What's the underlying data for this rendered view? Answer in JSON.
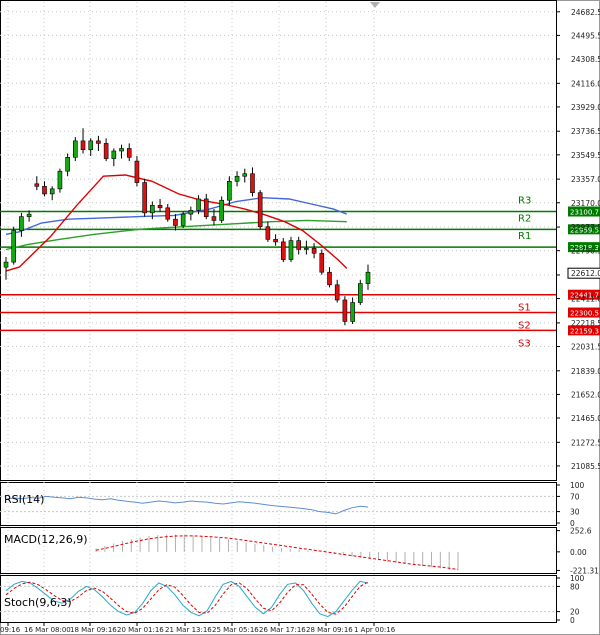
{
  "chart_data": {
    "type": "candlestick",
    "title": "",
    "ylim": [
      20990,
      24760
    ],
    "y_ticks": [
      "24682.5",
      "24495.5",
      "24308.5",
      "24116.0",
      "23929.0",
      "23736.5",
      "23549.5",
      "23357.0",
      "23170.0",
      "22977.5",
      "22790.5",
      "22598.0",
      "22411.0",
      "22218.5",
      "22031.5",
      "21839.0",
      "21652.0",
      "21465.0",
      "21272.5",
      "21085.5"
    ],
    "x_ticks": [
      "09:16",
      "16 Mar 08:00",
      "18 Mar 09:16",
      "20 Mar 01:16",
      "21 Mar 13:16",
      "25 Mar 05:16",
      "26 Mar 17:16",
      "28 Mar 09:16",
      "1 Apr 00:16"
    ],
    "current_price": "22612.0",
    "levels": [
      {
        "name": "R3",
        "value": 23100.7,
        "label": "23100.7",
        "color": "#007a00"
      },
      {
        "name": "R2",
        "value": 22959.5,
        "label": "22959.5",
        "color": "#007a00"
      },
      {
        "name": "R1",
        "value": 22818.3,
        "label": "22818.3",
        "color": "#007a00"
      },
      {
        "name": "S1",
        "value": 22441.7,
        "label": "22441.7",
        "color": "#e00000"
      },
      {
        "name": "S2",
        "value": 22300.5,
        "label": "22300.5",
        "color": "#e00000"
      },
      {
        "name": "S3",
        "value": 22159.3,
        "label": "22159.3",
        "color": "#e00000"
      }
    ],
    "candles": [
      {
        "o": 22660,
        "h": 22740,
        "l": 22560,
        "c": 22700
      },
      {
        "o": 22700,
        "h": 22980,
        "l": 22680,
        "c": 22950
      },
      {
        "o": 22950,
        "h": 23090,
        "l": 22900,
        "c": 23060
      },
      {
        "o": 23060,
        "h": 23110,
        "l": 23020,
        "c": 23080
      },
      {
        "o": 23320,
        "h": 23380,
        "l": 23270,
        "c": 23300
      },
      {
        "o": 23300,
        "h": 23340,
        "l": 23220,
        "c": 23240
      },
      {
        "o": 23240,
        "h": 23300,
        "l": 23190,
        "c": 23280
      },
      {
        "o": 23280,
        "h": 23440,
        "l": 23250,
        "c": 23420
      },
      {
        "o": 23420,
        "h": 23560,
        "l": 23380,
        "c": 23530
      },
      {
        "o": 23530,
        "h": 23690,
        "l": 23500,
        "c": 23660
      },
      {
        "o": 23660,
        "h": 23760,
        "l": 23560,
        "c": 23590
      },
      {
        "o": 23590,
        "h": 23680,
        "l": 23540,
        "c": 23660
      },
      {
        "o": 23660,
        "h": 23700,
        "l": 23580,
        "c": 23640
      },
      {
        "o": 23640,
        "h": 23680,
        "l": 23500,
        "c": 23520
      },
      {
        "o": 23520,
        "h": 23600,
        "l": 23460,
        "c": 23580
      },
      {
        "o": 23580,
        "h": 23630,
        "l": 23520,
        "c": 23600
      },
      {
        "o": 23600,
        "h": 23640,
        "l": 23500,
        "c": 23530
      },
      {
        "o": 23500,
        "h": 23540,
        "l": 23300,
        "c": 23330
      },
      {
        "o": 23330,
        "h": 23360,
        "l": 23060,
        "c": 23090
      },
      {
        "o": 23090,
        "h": 23180,
        "l": 23040,
        "c": 23150
      },
      {
        "o": 23150,
        "h": 23200,
        "l": 23100,
        "c": 23130
      },
      {
        "o": 23130,
        "h": 23160,
        "l": 23020,
        "c": 23040
      },
      {
        "o": 23040,
        "h": 23080,
        "l": 22950,
        "c": 22990
      },
      {
        "o": 22990,
        "h": 23100,
        "l": 22970,
        "c": 23080
      },
      {
        "o": 23080,
        "h": 23140,
        "l": 23030,
        "c": 23110
      },
      {
        "o": 23110,
        "h": 23230,
        "l": 23080,
        "c": 23200
      },
      {
        "o": 23200,
        "h": 23240,
        "l": 23040,
        "c": 23060
      },
      {
        "o": 23060,
        "h": 23120,
        "l": 22990,
        "c": 23030
      },
      {
        "o": 23030,
        "h": 23220,
        "l": 23010,
        "c": 23190
      },
      {
        "o": 23190,
        "h": 23380,
        "l": 23150,
        "c": 23340
      },
      {
        "o": 23340,
        "h": 23420,
        "l": 23300,
        "c": 23380
      },
      {
        "o": 23380,
        "h": 23440,
        "l": 23330,
        "c": 23400
      },
      {
        "o": 23400,
        "h": 23450,
        "l": 23220,
        "c": 23250
      },
      {
        "o": 23250,
        "h": 23270,
        "l": 22960,
        "c": 22980
      },
      {
        "o": 22980,
        "h": 23020,
        "l": 22860,
        "c": 22880
      },
      {
        "o": 22880,
        "h": 22920,
        "l": 22830,
        "c": 22860
      },
      {
        "o": 22860,
        "h": 22890,
        "l": 22700,
        "c": 22720
      },
      {
        "o": 22720,
        "h": 22900,
        "l": 22700,
        "c": 22870
      },
      {
        "o": 22870,
        "h": 22900,
        "l": 22760,
        "c": 22800
      },
      {
        "o": 22800,
        "h": 22870,
        "l": 22760,
        "c": 22810
      },
      {
        "o": 22810,
        "h": 22850,
        "l": 22730,
        "c": 22770
      },
      {
        "o": 22770,
        "h": 22800,
        "l": 22600,
        "c": 22620
      },
      {
        "o": 22620,
        "h": 22660,
        "l": 22500,
        "c": 22520
      },
      {
        "o": 22520,
        "h": 22560,
        "l": 22380,
        "c": 22400
      },
      {
        "o": 22400,
        "h": 22430,
        "l": 22200,
        "c": 22230
      },
      {
        "o": 22230,
        "h": 22420,
        "l": 22210,
        "c": 22380
      },
      {
        "o": 22380,
        "h": 22560,
        "l": 22360,
        "c": 22530
      },
      {
        "o": 22530,
        "h": 22680,
        "l": 22480,
        "c": 22620
      }
    ],
    "ma_red": [
      [
        0,
        22630
      ],
      [
        3,
        22660
      ],
      [
        10,
        22900
      ],
      [
        16,
        23150
      ],
      [
        22,
        23380
      ],
      [
        27,
        23390
      ],
      [
        33,
        23340
      ],
      [
        39,
        23240
      ],
      [
        44,
        23190
      ],
      [
        49,
        23160
      ],
      [
        54,
        23120
      ],
      [
        58,
        23080
      ],
      [
        63,
        23020
      ],
      [
        67,
        22950
      ],
      [
        71,
        22840
      ],
      [
        75,
        22720
      ],
      [
        77,
        22650
      ]
    ],
    "ma_blue": [
      [
        0,
        22920
      ],
      [
        3,
        22940
      ],
      [
        8,
        23010
      ],
      [
        14,
        23040
      ],
      [
        22,
        23050
      ],
      [
        30,
        23060
      ],
      [
        38,
        23070
      ],
      [
        46,
        23120
      ],
      [
        52,
        23180
      ],
      [
        58,
        23210
      ],
      [
        64,
        23200
      ],
      [
        69,
        23160
      ],
      [
        74,
        23120
      ],
      [
        77,
        23080
      ]
    ],
    "ma_green": [
      [
        0,
        22800
      ],
      [
        5,
        22840
      ],
      [
        12,
        22880
      ],
      [
        20,
        22920
      ],
      [
        30,
        22960
      ],
      [
        40,
        22980
      ],
      [
        50,
        23000
      ],
      [
        60,
        23020
      ],
      [
        68,
        23030
      ],
      [
        77,
        23020
      ]
    ],
    "indicators": {
      "rsi": {
        "label": "RSI(14)",
        "ticks": [
          "100",
          "70",
          "30",
          "0"
        ],
        "range": [
          0,
          100
        ],
        "lines": [
          70,
          30
        ],
        "values": [
          62,
          66,
          64,
          67,
          65,
          70,
          68,
          66,
          64,
          68,
          66,
          63,
          61,
          64,
          60,
          57,
          55,
          52,
          55,
          58,
          56,
          53,
          55,
          58,
          56,
          55,
          52,
          50,
          53,
          56,
          54,
          52,
          49,
          46,
          44,
          42,
          40,
          38,
          35,
          30,
          28,
          24,
          33,
          40,
          44,
          42
        ]
      },
      "macd": {
        "label": "MACD(12,26,9)",
        "ticks": [
          "252.6",
          "0.00",
          "-221.31"
        ],
        "range": [
          -240,
          260
        ],
        "hist": [
          40,
          70,
          100,
          130,
          150,
          170,
          190,
          200,
          205,
          205,
          200,
          195,
          185,
          175,
          165,
          150,
          130,
          110,
          95,
          80,
          60,
          45,
          35,
          25,
          15,
          5,
          -10,
          -25,
          -40,
          -55,
          -70,
          -85,
          -100,
          -115,
          -130,
          -145,
          -160,
          -170,
          -180,
          -195,
          -210,
          -221
        ],
        "signal": [
          20,
          40,
          65,
          90,
          115,
          135,
          155,
          170,
          180,
          188,
          190,
          190,
          186,
          180,
          172,
          163,
          150,
          135,
          120,
          105,
          90,
          75,
          60,
          45,
          30,
          15,
          0,
          -15,
          -30,
          -45,
          -60,
          -75,
          -90,
          -105,
          -120,
          -135,
          -150,
          -160,
          -170,
          -180,
          -195,
          -210
        ]
      },
      "stoch": {
        "label": "Stoch(9,6,3)",
        "ticks": [
          "100",
          "80",
          "20",
          "0"
        ],
        "range": [
          0,
          100
        ],
        "lines": [
          80,
          20
        ],
        "k": [
          70,
          85,
          92,
          88,
          75,
          60,
          45,
          40,
          50,
          68,
          80,
          72,
          55,
          35,
          20,
          12,
          18,
          40,
          70,
          88,
          80,
          60,
          35,
          18,
          10,
          22,
          55,
          85,
          92,
          80,
          55,
          30,
          15,
          30,
          60,
          85,
          88,
          70,
          40,
          15,
          8,
          20,
          45,
          70,
          92,
          88
        ],
        "d": [
          60,
          75,
          86,
          90,
          84,
          72,
          58,
          46,
          44,
          55,
          70,
          76,
          68,
          52,
          34,
          20,
          16,
          28,
          50,
          72,
          84,
          78,
          58,
          36,
          18,
          16,
          35,
          62,
          84,
          88,
          74,
          50,
          28,
          22,
          40,
          66,
          84,
          84,
          62,
          38,
          18,
          14,
          30,
          55,
          80,
          90
        ]
      }
    }
  }
}
